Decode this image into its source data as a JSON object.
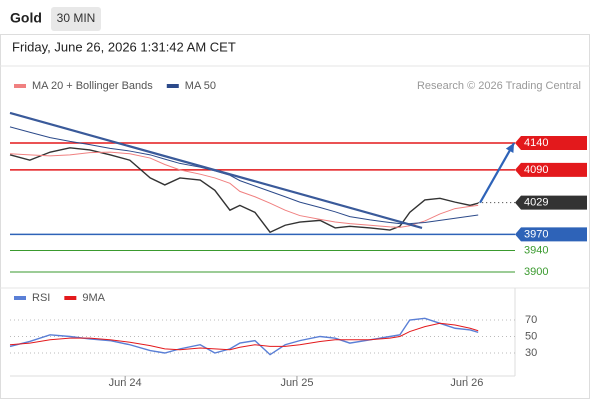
{
  "header": {
    "symbol": "Gold",
    "timeframe": "30 MIN",
    "datetime": "Friday, June 26, 2026 1:31:42 AM CET",
    "credit": "Research © 2026 Trading Central"
  },
  "chart_data": [
    {
      "type": "line",
      "x": [
        0,
        4.2,
        8.5,
        12.7,
        16.9,
        21.2,
        25.4,
        29.7,
        32.8,
        36,
        40.3,
        43.4,
        46.6,
        48.7,
        51.9,
        55.1,
        58.3,
        61.4,
        65.7,
        68.9,
        72,
        76.3,
        80.5,
        82.6,
        84.7,
        87.9,
        91.1,
        94.3,
        97.5,
        99.2
      ],
      "series": [
        {
          "color": "#333333",
          "values": [
            4118,
            4108,
            4123,
            4131,
            4127,
            4118,
            4108,
            4075,
            4062,
            4075,
            4071,
            4052,
            4015,
            4024,
            4011,
            3974,
            3987,
            3993,
            3996,
            3982,
            3985,
            3982,
            3978,
            3985,
            4011,
            4034,
            4037,
            4030,
            4024,
            4028
          ]
        },
        {
          "name": "MA 20 + Bollinger Bands",
          "color": "#f08080",
          "values": [
            4120,
            4118,
            4116,
            4118,
            4122,
            4123,
            4120,
            4112,
            4100,
            4090,
            4082,
            4075,
            4065,
            4050,
            4040,
            4028,
            4015,
            4005,
            3998,
            3993,
            3990,
            3987,
            3984,
            3983,
            3986,
            3995,
            4008,
            4018,
            4022,
            4024
          ]
        },
        {
          "name": "MA 50",
          "color": "#2c4a8a",
          "values": [
            4170,
            4160,
            4150,
            4143,
            4137,
            4130,
            4125,
            4118,
            4110,
            4102,
            4095,
            4088,
            4080,
            4070,
            4060,
            4050,
            4040,
            4030,
            4020,
            4012,
            4003,
            3997,
            3992,
            3990,
            3990,
            3992,
            3996,
            4000,
            4004,
            4006
          ]
        }
      ],
      "trendline": {
        "from": [
          0,
          4196
        ],
        "to": [
          87.3,
          3982
        ],
        "color": "#3a5a9a"
      },
      "projection": {
        "from": [
          99.6,
          4029
        ],
        "to": [
          106.8,
          4140
        ],
        "color": "#2e63b8"
      },
      "levels": [
        {
          "value": 4140,
          "color": "#e3191c",
          "boxed": true
        },
        {
          "value": 4090,
          "color": "#e3191c",
          "boxed": true
        },
        {
          "value": 4029,
          "color": "#333333",
          "boxed": true,
          "dashed": true
        },
        {
          "value": 3970,
          "color": "#2e63b8",
          "boxed": true
        },
        {
          "value": 3940,
          "color": "#3a9a2e",
          "boxed": false
        },
        {
          "value": 3900,
          "color": "#3a9a2e",
          "boxed": false
        }
      ],
      "xlim": [
        0,
        107
      ],
      "ylim": [
        3880,
        4220
      ]
    },
    {
      "type": "line",
      "x": [
        0,
        4.2,
        8.5,
        12.7,
        16.9,
        21.2,
        25.4,
        29.7,
        32.8,
        36,
        40.3,
        43.4,
        46.6,
        48.7,
        51.9,
        55.1,
        58.3,
        61.4,
        65.7,
        68.9,
        72,
        76.3,
        80.5,
        82.6,
        84.7,
        87.9,
        91.1,
        94.3,
        97.5,
        99.2
      ],
      "series": [
        {
          "name": "RSI",
          "color": "#5a7fd6",
          "values": [
            38,
            44,
            52,
            50,
            47,
            45,
            40,
            33,
            30,
            35,
            40,
            30,
            35,
            42,
            45,
            28,
            40,
            45,
            50,
            48,
            42,
            46,
            50,
            52,
            70,
            72,
            66,
            60,
            58,
            55
          ]
        },
        {
          "name": "9MA",
          "color": "#e3191c",
          "values": [
            40,
            42,
            46,
            48,
            48,
            46,
            43,
            39,
            35,
            34,
            36,
            35,
            34,
            37,
            40,
            38,
            38,
            40,
            44,
            46,
            46,
            46,
            48,
            50,
            56,
            62,
            66,
            64,
            60,
            57
          ]
        }
      ],
      "xlim": [
        0,
        107
      ],
      "ylim": [
        6,
        94
      ],
      "yticks": [
        70,
        50,
        30
      ],
      "xticks": [
        {
          "value": 24.4,
          "label": "Jun 24"
        },
        {
          "value": 60.8,
          "label": "Jun 25"
        },
        {
          "value": 96.8,
          "label": "Jun 26"
        }
      ]
    }
  ]
}
